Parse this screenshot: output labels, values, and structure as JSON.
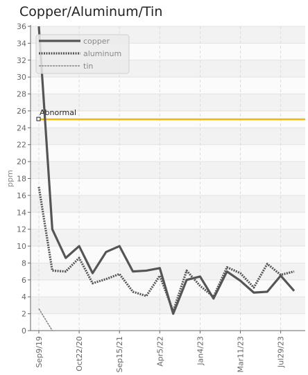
{
  "chart_data": {
    "type": "line",
    "title": "Copper/Aluminum/Tin",
    "ylabel": "ppm",
    "xlabel": "",
    "ylim": [
      0,
      36
    ],
    "yticks": [
      0,
      2,
      4,
      6,
      8,
      10,
      12,
      14,
      16,
      18,
      20,
      22,
      24,
      26,
      28,
      30,
      32,
      34,
      36
    ],
    "xtick_labels": [
      "Sep9/19",
      "Oct22/20",
      "Sep15/21",
      "Apr5/22",
      "Jan4/23",
      "Mar11/23",
      "Jul29/23"
    ],
    "grid": true,
    "legend_position": "top-left",
    "threshold": {
      "label": "Abnormal",
      "value": 25,
      "color": "#f5b800"
    },
    "series": [
      {
        "name": "copper",
        "style": "solid",
        "color": "#555555",
        "values": [
          36,
          12,
          8.6,
          10,
          6.8,
          9.3,
          10,
          7,
          7.1,
          7.4,
          2,
          6,
          6.4,
          3.8,
          7,
          5.9,
          4.5,
          4.6,
          6.5,
          4.7
        ]
      },
      {
        "name": "aluminum",
        "style": "dotted",
        "color": "#555555",
        "values": [
          17,
          7.1,
          7,
          8.6,
          5.6,
          6.1,
          6.7,
          4.6,
          4.1,
          6.5,
          2.3,
          7.1,
          5.3,
          4,
          7.5,
          6.8,
          5.1,
          7.9,
          6.6,
          7
        ]
      },
      {
        "name": "tin",
        "style": "dashed",
        "color": "#888888",
        "values": [
          2.6,
          0,
          0,
          0,
          0,
          0,
          0,
          0,
          0,
          0,
          0,
          0,
          0,
          0,
          0,
          0,
          0,
          0,
          0,
          0
        ]
      }
    ]
  }
}
